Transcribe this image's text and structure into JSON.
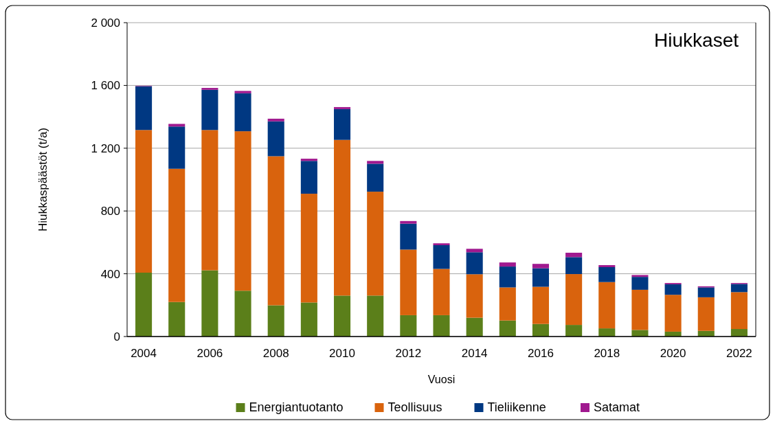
{
  "chart_data": {
    "type": "bar",
    "title": "Hiukkaset",
    "xlabel": "Vuosi",
    "ylabel": "Hiukkaspäästöt (t/a)",
    "categories": [
      "2004",
      null,
      "2006",
      null,
      "2008",
      null,
      "2010",
      null,
      "2012",
      null,
      "2014",
      null,
      "2016",
      null,
      "2018",
      null,
      "2020",
      null,
      "2022"
    ],
    "stacked": true,
    "series": [
      {
        "name": "Energiantuotanto",
        "color": "#5b7f1a",
        "values": [
          407,
          220,
          422,
          292,
          199,
          217,
          261,
          261,
          136,
          136,
          120,
          102,
          80,
          74,
          52,
          42,
          31,
          36,
          48
        ]
      },
      {
        "name": "Teollisuus",
        "color": "#d9630d",
        "values": [
          909,
          849,
          894,
          1016,
          950,
          693,
          992,
          662,
          418,
          295,
          277,
          211,
          237,
          324,
          295,
          256,
          235,
          214,
          235
        ]
      },
      {
        "name": "Tieliikenne",
        "color": "#003882",
        "values": [
          279,
          269,
          256,
          242,
          222,
          209,
          196,
          178,
          165,
          151,
          140,
          133,
          118,
          108,
          95,
          82,
          67,
          63,
          52
        ]
      },
      {
        "name": "Satamat",
        "color": "#a0198f",
        "values": [
          3,
          17,
          12,
          15,
          17,
          14,
          13,
          18,
          17,
          12,
          22,
          26,
          28,
          28,
          13,
          12,
          8,
          7,
          6
        ]
      }
    ],
    "ylim": [
      0,
      2000
    ],
    "yticks": [
      0,
      400,
      800,
      {
        "value": 1200,
        "label": "1 200"
      },
      {
        "value": 1600,
        "label": "1 600"
      },
      {
        "value": 2000,
        "label": "2 000"
      }
    ],
    "grid": "y",
    "legend": "bottom"
  }
}
